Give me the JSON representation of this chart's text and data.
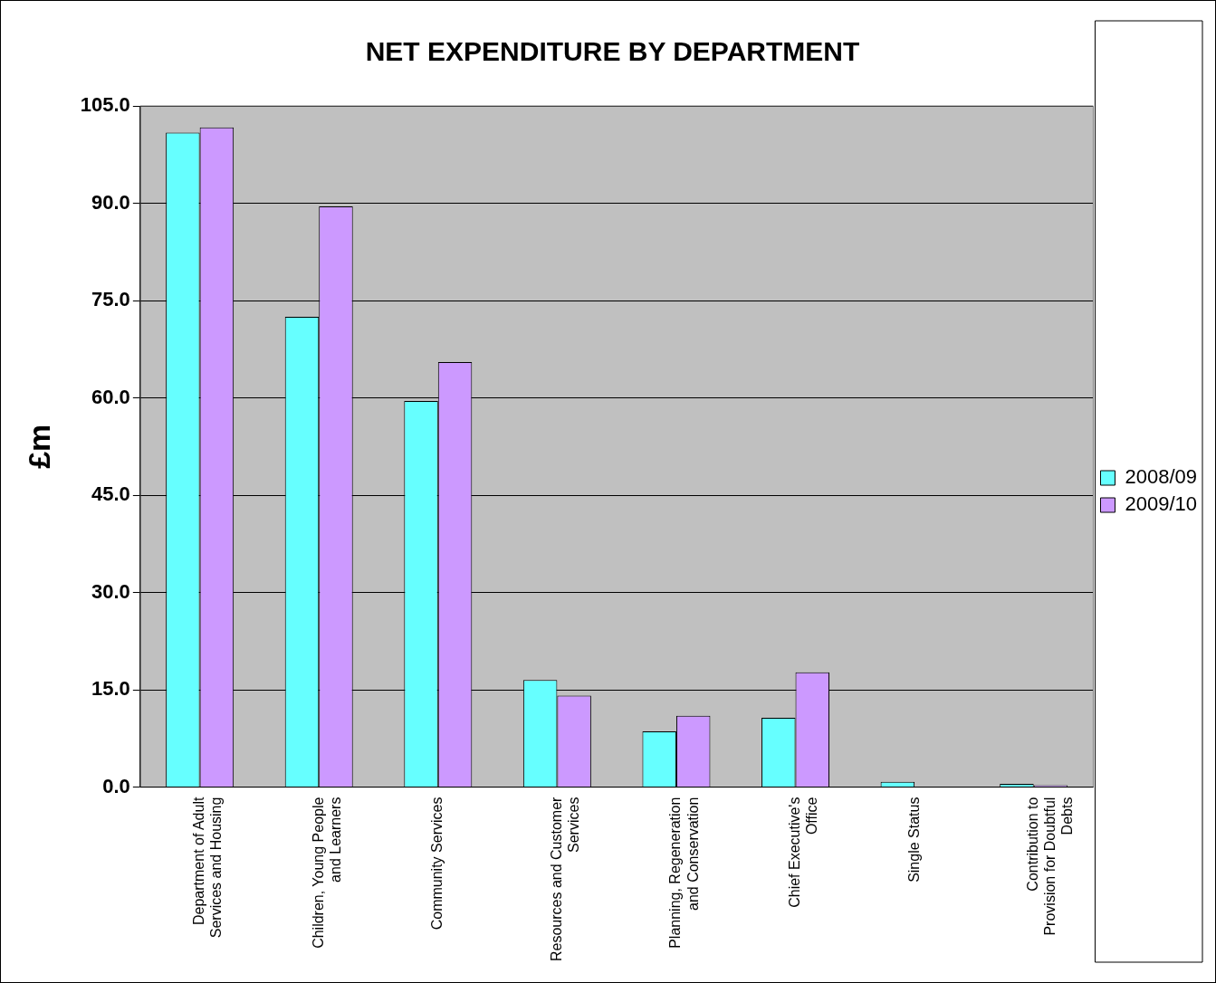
{
  "chart_data": {
    "type": "bar",
    "title": "NET EXPENDITURE BY DEPARTMENT",
    "ylabel": "£m",
    "categories": [
      "Department of Adult Services and Housing",
      "Children, Young People and Learners",
      "Community Services",
      "Resources and Customer Services",
      "Planning, Regeneration and Conservation",
      "Chief Executive's Office",
      "Single Status",
      "Contribution to Provision for Doubtful Debts"
    ],
    "series": [
      {
        "name": "2008/09",
        "color": "#66ffff",
        "values": [
          100.9,
          72.5,
          59.5,
          16.5,
          8.6,
          10.7,
          0.8,
          0.5
        ]
      },
      {
        "name": "2009/10",
        "color": "#cc99ff",
        "values": [
          101.7,
          89.5,
          65.5,
          14.1,
          11.0,
          17.7,
          0,
          0.3
        ]
      }
    ],
    "ylim": [
      0,
      105
    ],
    "yticks": [
      {
        "value": 0,
        "label": "0.0"
      },
      {
        "value": 15,
        "label": "15.0"
      },
      {
        "value": 30,
        "label": "30.0"
      },
      {
        "value": 45,
        "label": "45.0"
      },
      {
        "value": 60,
        "label": "60.0"
      },
      {
        "value": 75,
        "label": "75.0"
      },
      {
        "value": 90,
        "label": "90.0"
      },
      {
        "value": 105,
        "label": "105.0"
      }
    ],
    "grid": "y",
    "legend": "right"
  }
}
